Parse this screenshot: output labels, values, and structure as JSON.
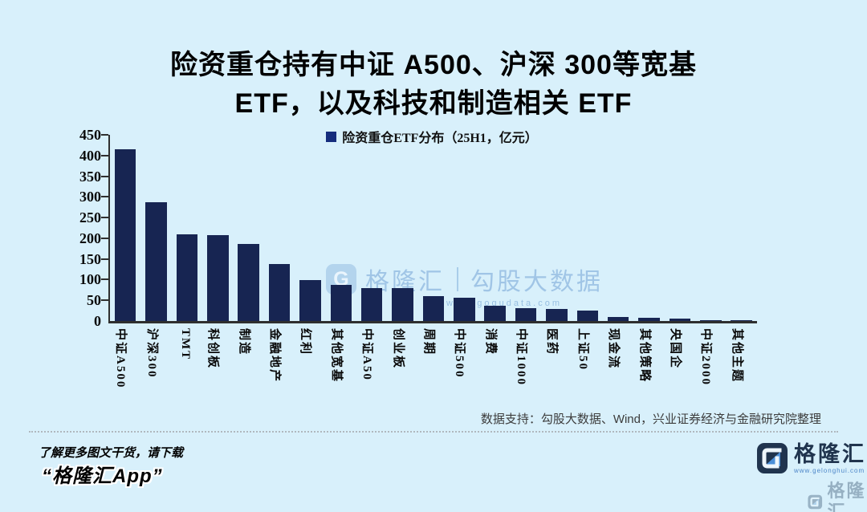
{
  "page_title": {
    "line1": "险资重仓持有中证 A500、沪深 300等宽基",
    "line2": "ETF，以及科技和制造相关 ETF"
  },
  "chart_data": {
    "type": "bar",
    "title": "险资重仓ETF分布（25H1，亿元）",
    "categories": [
      "中证A500",
      "沪深300",
      "TMT",
      "科创板",
      "制造",
      "金融地产",
      "红利",
      "其他宽基",
      "中证A50",
      "创业板",
      "周期",
      "中证500",
      "消费",
      "中证1000",
      "医药",
      "上证50",
      "现金流",
      "其他策略",
      "央国企",
      "中证2000",
      "其他主题"
    ],
    "values": [
      415,
      288,
      210,
      207,
      186,
      138,
      99,
      88,
      80,
      79,
      60,
      57,
      37,
      32,
      30,
      26,
      9,
      8,
      5,
      2,
      2
    ],
    "xlabel": "",
    "ylabel": "",
    "ylim": [
      0,
      450
    ],
    "yticks": [
      0,
      50,
      100,
      150,
      200,
      250,
      300,
      350,
      400,
      450
    ],
    "grid": false,
    "legend_position": "top-center"
  },
  "watermark": {
    "brand": "格隆汇",
    "product": "勾股大数据",
    "url": "www.gogudata.com",
    "monogram": "G"
  },
  "source_note": "数据支持：勾股大数据、Wind，兴业证券经济与金融研究院整理",
  "promo": {
    "line1": "了解更多图文干货，请下载",
    "line2": "“格隆汇App”"
  },
  "logo": {
    "brand": "格隆汇",
    "url": "www.gelonghui.com",
    "monogram": "G"
  },
  "corner_watermark": {
    "brand": "格隆汇"
  },
  "colors": {
    "background": "#d8f0fb",
    "bar": "#172552",
    "legend_marker": "#152d7d",
    "axis": "#2f2f2f",
    "watermark": "#9cc0e2",
    "logo_navy": "#20344e",
    "logo_blue": "#4b8fd8",
    "title_text": "#000000",
    "source_text": "#3c3c3c"
  }
}
